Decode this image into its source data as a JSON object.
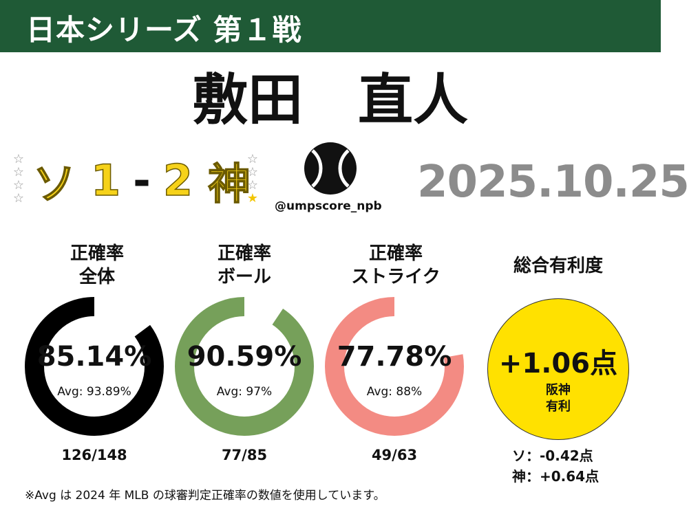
{
  "header": {
    "title": "日本シリーズ 第１戦",
    "bg_color": "#1f5a36"
  },
  "umpire": {
    "name": "敷田　直人"
  },
  "score": {
    "away_team": "ソ",
    "away_runs": "1",
    "separator": "-",
    "home_runs": "2",
    "home_team": "神",
    "text_color": "#f6d21a",
    "away_stars": 0,
    "home_stars": 1,
    "max_stars": 4
  },
  "brand": {
    "handle": "@umpscore_npb",
    "logo_icon": "baseball-icon"
  },
  "game": {
    "date": "2025.10.25"
  },
  "metrics": [
    {
      "label_line1": "正確率",
      "label_line2": "全体",
      "pct": "85.14%",
      "pct_value": 85.14,
      "avg": "Avg: 93.89%",
      "count": "126/148",
      "color": "#000000"
    },
    {
      "label_line1": "正確率",
      "label_line2": "ボール",
      "pct": "90.59%",
      "pct_value": 90.59,
      "avg": "Avg: 97%",
      "count": "77/85",
      "color": "#76a05a"
    },
    {
      "label_line1": "正確率",
      "label_line2": "ストライク",
      "pct": "77.78%",
      "pct_value": 77.78,
      "avg": "Avg: 88%",
      "count": "49/63",
      "color": "#f38b83"
    }
  ],
  "advantage": {
    "label": "総合有利度",
    "value": "+1.06点",
    "team_line1": "阪神",
    "team_line2": "有利",
    "away_line": "ソ：-0.42点",
    "home_line": "神：+0.64点",
    "color": "#ffe100"
  },
  "footnote": "※Avg は 2024 年 MLB の球審判定正確率の数値を使用しています。"
}
